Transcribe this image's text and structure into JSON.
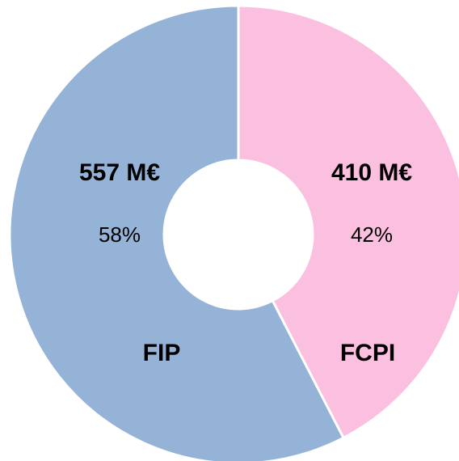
{
  "chart_data": {
    "type": "donut",
    "categories": [
      "FIP",
      "FCPI"
    ],
    "values": [
      557,
      410
    ],
    "value_labels": [
      "557 M€",
      "410 M€"
    ],
    "shares": [
      58,
      42
    ],
    "share_labels": [
      "58%",
      "42%"
    ],
    "colors": [
      "#95b3d7",
      "#fbbfe0"
    ]
  }
}
